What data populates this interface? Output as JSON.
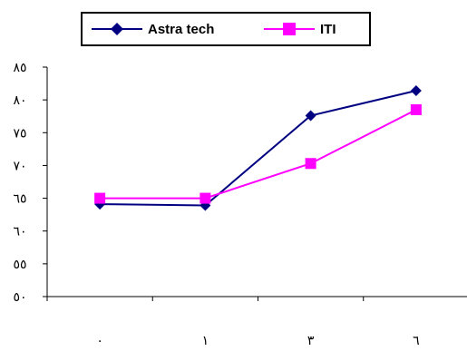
{
  "chart_data": {
    "type": "line",
    "categories": [
      "٠",
      "١",
      "٣",
      "٦"
    ],
    "series": [
      {
        "name": "Astra tech",
        "color": "#000080",
        "marker": "diamond",
        "values": [
          64.1,
          63.9,
          77.6,
          81.4
        ]
      },
      {
        "name": "ITI",
        "color": "#ff00ff",
        "marker": "square",
        "values": [
          65.0,
          65.0,
          70.3,
          78.5
        ]
      }
    ],
    "ylim": [
      50,
      85
    ],
    "yticks": [
      50,
      55,
      60,
      65,
      70,
      75,
      80,
      85
    ],
    "ytick_labels": [
      "٥٠",
      "٥٥",
      "٦٠",
      "٦٥",
      "٧٠",
      "٧٥",
      "٨٠",
      "٨٥"
    ],
    "grid": false,
    "legend_position": "top"
  }
}
